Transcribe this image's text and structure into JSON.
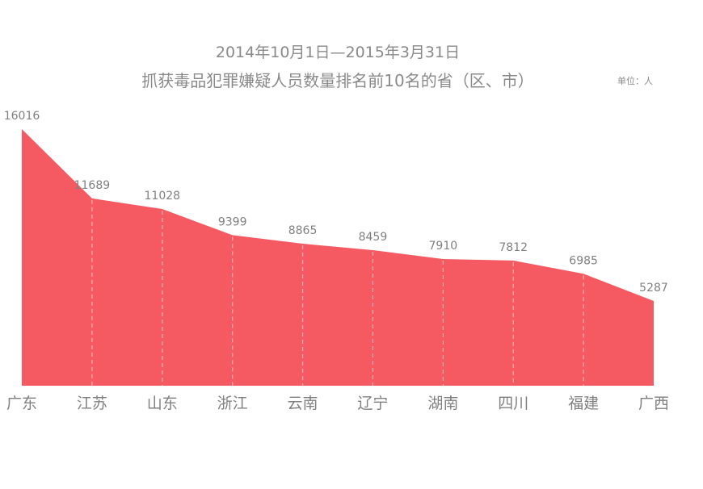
{
  "chart_data": {
    "type": "area",
    "title": "2014年10月1日—2015年3月31日",
    "subtitle": "抓获毒品犯罪嫌疑人员数量排名前10名的省（区、市）",
    "unit": "单位：人",
    "categories": [
      "广东",
      "江苏",
      "山东",
      "浙江",
      "云南",
      "辽宁",
      "湖南",
      "四川",
      "福建",
      "广西"
    ],
    "values": [
      16016,
      11689,
      11028,
      9399,
      8865,
      8459,
      7910,
      7812,
      6985,
      5287
    ],
    "ylim": [
      0,
      16016
    ],
    "grid": false,
    "color": "#f55a63",
    "dropline_color": "#f9b0b4",
    "text_color": "#808080"
  }
}
